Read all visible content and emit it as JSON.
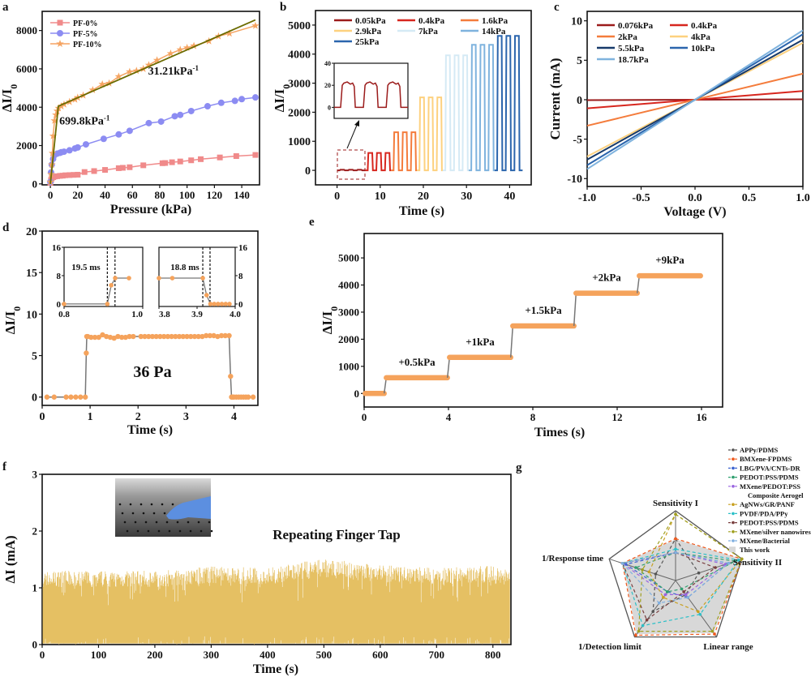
{
  "chart_data": [
    {
      "id": "a",
      "panel_label": "a",
      "type": "line",
      "xlabel": "Pressure (kPa)",
      "ylabel": {
        "text": "ΔI/I",
        "sub": "0"
      },
      "xlim": [
        -6,
        153
      ],
      "ylim": [
        -50,
        9000
      ],
      "xticks": [
        "0",
        "20",
        "40",
        "60",
        "80",
        "100",
        "120",
        "140"
      ],
      "yticks": [
        "0",
        "2000",
        "4000",
        "6000",
        "8000"
      ],
      "legend_position": "top-left",
      "series": [
        {
          "name": "PF-0%",
          "color": "#f08a8a",
          "marker": "square",
          "x": [
            0,
            0.5,
            1,
            2,
            3,
            5,
            7,
            9,
            11,
            14,
            17,
            20,
            25,
            32,
            40,
            50,
            53,
            58,
            68,
            82,
            84,
            89,
            95,
            103,
            110,
            124,
            136,
            150
          ],
          "y": [
            50,
            200,
            300,
            350,
            380,
            400,
            420,
            430,
            450,
            460,
            470,
            480,
            620,
            670,
            730,
            820,
            840,
            870,
            970,
            1080,
            1090,
            1130,
            1170,
            1230,
            1290,
            1380,
            1450,
            1510
          ]
        },
        {
          "name": "PF-5%",
          "color": "#8c8cf2",
          "marker": "circle",
          "x": [
            0,
            0.5,
            1,
            2,
            3,
            5,
            7,
            8,
            10,
            14,
            18,
            20,
            26,
            39,
            50,
            58,
            72,
            81,
            91,
            95,
            103,
            115,
            125,
            135,
            140,
            150
          ],
          "y": [
            100,
            600,
            1000,
            1300,
            1500,
            1580,
            1620,
            1650,
            1680,
            1750,
            1850,
            1900,
            2060,
            2350,
            2580,
            2770,
            3170,
            3250,
            3530,
            3600,
            3800,
            4050,
            4230,
            4330,
            4420,
            4510
          ]
        },
        {
          "name": "PF-10%",
          "color": "#f5a462",
          "marker": "star",
          "x": [
            0,
            0.5,
            1,
            1.5,
            2,
            3,
            4,
            5,
            6,
            8,
            10,
            14,
            18,
            20,
            24,
            31,
            38,
            43,
            50,
            58,
            63,
            68,
            72,
            78,
            88,
            95,
            100,
            105,
            116,
            123,
            131,
            150
          ],
          "y": [
            100,
            500,
            1000,
            1600,
            2500,
            3300,
            3600,
            3800,
            3950,
            4050,
            4150,
            4280,
            4400,
            4500,
            4620,
            4900,
            5200,
            5250,
            5600,
            5850,
            5900,
            6000,
            6200,
            6450,
            6800,
            7000,
            7100,
            7200,
            7450,
            7700,
            7850,
            8250
          ]
        }
      ],
      "fit_lines": {
        "color": "#6b6b00",
        "points": [
          [
            0,
            0
          ],
          [
            5.8,
            4050
          ],
          [
            150,
            8550
          ]
        ]
      },
      "annotations": [
        {
          "text": "699.8kPa",
          "sup": "-1",
          "x": 25,
          "y": 3100
        },
        {
          "text": "31.21kPa",
          "sup": "-1",
          "x": 90,
          "y": 5700
        }
      ]
    },
    {
      "id": "b",
      "panel_label": "b",
      "type": "line",
      "xlabel": "Time (s)",
      "ylabel": {
        "text": "ΔI/I",
        "sub": "0"
      },
      "xlim": [
        -5,
        45
      ],
      "ylim": [
        -500,
        5500
      ],
      "xticks": [
        "0",
        "10",
        "20",
        "30",
        "40"
      ],
      "yticks": [
        "0",
        "1000",
        "2000",
        "3000",
        "4000",
        "5000"
      ],
      "legend_position": "top",
      "series": [
        {
          "name": "0.05kPa",
          "color": "#9b1b1b",
          "level": 20,
          "t_start": 0,
          "t_end": 6.5
        },
        {
          "name": "0.4kPa",
          "color": "#d7261e",
          "level": 600,
          "t_start": 6.5,
          "t_end": 12.5
        },
        {
          "name": "1.6kPa",
          "color": "#f47c3c",
          "level": 1310,
          "t_start": 12.5,
          "t_end": 18.5
        },
        {
          "name": "2.9kPa",
          "color": "#fdd17f",
          "level": 2510,
          "t_start": 18.5,
          "t_end": 24.5
        },
        {
          "name": "7kPa",
          "color": "#d5eaf5",
          "level": 3960,
          "t_start": 24.5,
          "t_end": 30.5
        },
        {
          "name": "14kPa",
          "color": "#7fb3de",
          "level": 4320,
          "t_start": 30.5,
          "t_end": 36.5
        },
        {
          "name": "25kPa",
          "color": "#2b65ad",
          "level": 4630,
          "t_start": 36.5,
          "t_end": 43
        }
      ],
      "inset": {
        "xlim": [
          -0.2,
          6.6
        ],
        "ylim": [
          -10,
          40
        ],
        "yticks": [
          "0",
          "20",
          "40"
        ],
        "level": 21,
        "color": "#9b1b1b"
      }
    },
    {
      "id": "c",
      "panel_label": "c",
      "type": "line",
      "xlabel": "Voltage (V)",
      "ylabel": {
        "text": "Current (mA)",
        "sub": ""
      },
      "xlim": [
        -1,
        1
      ],
      "ylim": [
        -11,
        11.2
      ],
      "xticks": [
        "-1.0",
        "-0.5",
        "0.0",
        "0.5",
        "1.0"
      ],
      "yticks": [
        "-10",
        "-5",
        "0",
        "5",
        "10"
      ],
      "legend_position": "top-left",
      "series": [
        {
          "name": "0.076kPa",
          "color": "#9b1b1b",
          "slope": 0.05
        },
        {
          "name": "0.4kPa",
          "color": "#d7261e",
          "slope": 1.1
        },
        {
          "name": "2kPa",
          "color": "#f47c3c",
          "slope": 3.3
        },
        {
          "name": "4kPa",
          "color": "#fdd17f",
          "slope": 7.2
        },
        {
          "name": "5.5kPa",
          "color": "#173a6a",
          "slope": 7.6
        },
        {
          "name": "10kPa",
          "color": "#2b65ad",
          "slope": 8.3
        },
        {
          "name": "18.7kPa",
          "color": "#7fb3de",
          "slope": 8.8
        }
      ]
    },
    {
      "id": "d",
      "panel_label": "d",
      "type": "line",
      "xlabel": "Time (s)",
      "ylabel": {
        "text": "ΔI/I",
        "sub": "0"
      },
      "xlim": [
        0,
        4.5
      ],
      "ylim": [
        -1,
        20
      ],
      "xticks": [
        "0",
        "1",
        "2",
        "3",
        "4"
      ],
      "yticks": [
        "0",
        "5",
        "10",
        "15",
        "20"
      ],
      "color": "#f5a35c",
      "annotation": "36 Pa",
      "x": [
        0.1,
        0.25,
        0.5,
        0.6,
        0.7,
        0.8,
        0.9,
        0.92,
        0.93,
        0.95,
        1.02,
        1.1,
        1.18,
        1.26,
        1.34,
        1.42,
        1.5,
        1.58,
        1.66,
        1.74,
        1.82,
        1.9,
        2.06,
        2.14,
        2.22,
        2.3,
        2.38,
        2.46,
        2.54,
        2.62,
        2.7,
        2.78,
        2.86,
        2.94,
        3.02,
        3.1,
        3.18,
        3.26,
        3.34,
        3.42,
        3.5,
        3.58,
        3.66,
        3.74,
        3.82,
        3.9,
        3.93,
        3.95,
        3.97,
        4.0,
        4.05,
        4.1,
        4.15,
        4.2,
        4.25,
        4.3,
        4.4
      ],
      "y": [
        0,
        0,
        0,
        0,
        0,
        0,
        0,
        5.3,
        7.3,
        7.3,
        7.2,
        7.2,
        7.2,
        7.5,
        7.3,
        7.2,
        7.1,
        7.3,
        7.2,
        7.2,
        7.3,
        7.3,
        7.3,
        7.3,
        7.3,
        7.3,
        7.3,
        7.3,
        7.3,
        7.3,
        7.3,
        7.3,
        7.3,
        7.3,
        7.3,
        7.3,
        7.3,
        7.3,
        7.3,
        7.4,
        7.4,
        7.4,
        7.3,
        7.4,
        7.4,
        7.4,
        2.5,
        0,
        0,
        0,
        0,
        0,
        0,
        0,
        0,
        0,
        0
      ],
      "insets": [
        {
          "xlim": [
            0.8,
            1.0
          ],
          "ylim": [
            -0.7,
            16
          ],
          "xticks": [
            "0.8",
            "1.0"
          ],
          "yticks": [
            "0",
            "8",
            "16"
          ],
          "axis_side": "left",
          "label": "19.5 ms",
          "markers": [
            0.91,
            0.9295
          ],
          "x": [
            0.8,
            0.91,
            0.92,
            0.93,
            0.965
          ],
          "y": [
            0,
            0,
            5.3,
            7.3,
            7.3
          ]
        },
        {
          "xlim": [
            3.8,
            4.0
          ],
          "ylim": [
            -0.7,
            16
          ],
          "xticks": [
            "3.8",
            "3.9",
            "4.0"
          ],
          "yticks": [
            "0",
            "8",
            "16"
          ],
          "axis_side": "right",
          "label": "18.8 ms",
          "markers": [
            3.915,
            3.934
          ],
          "x": [
            3.8,
            3.835,
            3.915,
            3.925,
            3.935,
            3.945,
            3.955,
            3.965,
            3.975,
            3.985
          ],
          "y": [
            7.3,
            7.3,
            7.3,
            2.5,
            0,
            0,
            0,
            0,
            0,
            0
          ]
        }
      ]
    },
    {
      "id": "e",
      "panel_label": "e",
      "type": "line",
      "xlabel": "Times (s)",
      "ylabel": {
        "text": "ΔI/I",
        "sub": "0"
      },
      "xlim": [
        0,
        17
      ],
      "ylim": [
        -500,
        5900
      ],
      "xticks": [
        "0",
        "4",
        "8",
        "12",
        "16"
      ],
      "yticks": [
        "0",
        "1000",
        "2000",
        "3000",
        "4000",
        "5000"
      ],
      "color": "#f5a35c",
      "steps": [
        {
          "t_start": 0,
          "t_end": 1,
          "level": 0,
          "label": ""
        },
        {
          "t_start": 1,
          "t_end": 4,
          "level": 580,
          "label": "+0.5kPa"
        },
        {
          "t_start": 4,
          "t_end": 7,
          "level": 1330,
          "label": "+1kPa"
        },
        {
          "t_start": 7,
          "t_end": 10,
          "level": 2490,
          "label": "+1.5kPa"
        },
        {
          "t_start": 10,
          "t_end": 13,
          "level": 3700,
          "label": "+2kPa"
        },
        {
          "t_start": 13,
          "t_end": 16,
          "level": 4340,
          "label": "+9kPa"
        }
      ]
    },
    {
      "id": "f",
      "panel_label": "f",
      "type": "line",
      "xlabel": "Time (s)",
      "ylabel": {
        "text": "ΔI (mA)",
        "sub": ""
      },
      "xlim": [
        0,
        832
      ],
      "ylim": [
        0,
        3
      ],
      "xticks": [
        "0",
        "100",
        "200",
        "300",
        "400",
        "500",
        "600",
        "700",
        "800"
      ],
      "yticks": [
        "0",
        "1",
        "2",
        "3"
      ],
      "color": "#e5c063",
      "annotation": "Repeating Finger Tap",
      "peak_envelope": {
        "t": [
          0,
          100,
          200,
          300,
          400,
          500,
          600,
          700,
          800,
          830
        ],
        "y": [
          1.3,
          1.3,
          1.3,
          1.38,
          1.35,
          1.52,
          1.4,
          1.35,
          1.4,
          1.3
        ]
      }
    },
    {
      "id": "g",
      "panel_label": "g",
      "type": "radar",
      "axes": [
        "Sensitivity I",
        "Sensitivity II",
        "Linear range",
        "1/Detection limit",
        "1/Response time"
      ],
      "series": [
        {
          "name": "APPy/PDMS",
          "color": "#555555",
          "values": [
            0.6,
            0.35,
            0.25,
            0.55,
            0.3
          ]
        },
        {
          "name": "BMXene-FPDMS",
          "color": "#f05a1e",
          "values": [
            0.6,
            1.0,
            0.95,
            0.97,
            0.8
          ]
        },
        {
          "name": "LBG/PVA/CNTs-DR",
          "color": "#3c64d0",
          "values": [
            0.4,
            0.8,
            0.3,
            0.2,
            0.75
          ]
        },
        {
          "name": "PEDOT:PSS/PDMS",
          "color": "#30a070",
          "values": [
            0.4,
            0.9,
            0.15,
            0.2,
            0.6
          ]
        },
        {
          "name": "MXene/PEDOT:PSS",
          "color": "#9a64e0",
          "values": [
            0.4,
            0.75,
            0.25,
            0.25,
            0.8
          ]
        },
        {
          "name": "Composite Aerogel",
          "color": "",
          "values": []
        },
        {
          "name": "AgNWs/GR/PANF",
          "color": "#c8a020",
          "values": [
            0.95,
            1.0,
            0.55,
            0.3,
            0.4
          ]
        },
        {
          "name": "PVDF/PDA/PPy",
          "color": "#2cc0c8",
          "values": [
            0.45,
            0.95,
            0.6,
            0.8,
            0.8
          ]
        },
        {
          "name": "PEDOT:PSS/PDMS",
          "color": "#7a4040",
          "values": [
            0.4,
            0.6,
            0.2,
            0.7,
            0.8
          ]
        },
        {
          "name": "MXene/silver nanowires",
          "color": "#a0a020",
          "values": [
            0.95,
            1.0,
            0.9,
            0.9,
            0.5
          ]
        },
        {
          "name": "MXene/Bacterial",
          "color": "#80b0e0",
          "values": [
            0.4,
            0.8,
            0.3,
            0.4,
            0.8
          ]
        },
        {
          "name": "This work",
          "color": "#d8d8d8",
          "fill": true,
          "values": [
            0.59,
            1.0,
            0.93,
            0.95,
            0.8
          ]
        }
      ]
    }
  ]
}
